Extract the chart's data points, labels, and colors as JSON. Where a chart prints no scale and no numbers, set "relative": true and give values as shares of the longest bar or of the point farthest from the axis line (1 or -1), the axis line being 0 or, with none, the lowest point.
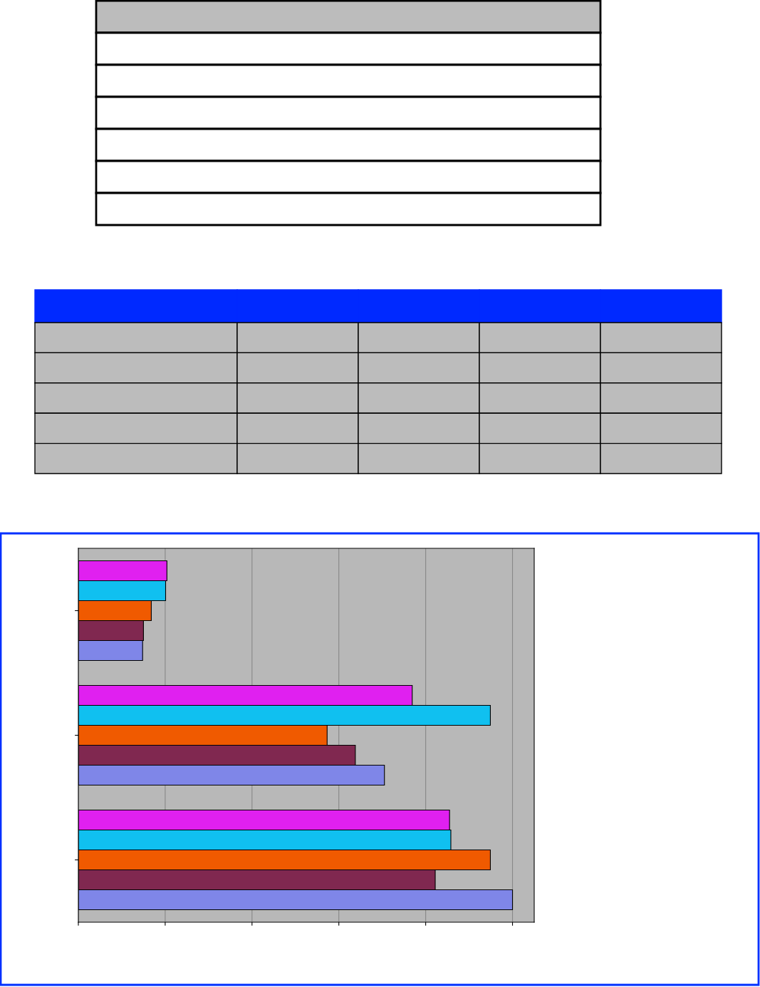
{
  "chart_data": {
    "type": "bar",
    "orientation": "horizontal",
    "relative": true,
    "grid": "x",
    "categories": [
      null,
      null,
      null
    ],
    "series": [
      {
        "color": "#e020f0",
        "values": [
          0.204,
          0.769,
          0.855
        ]
      },
      {
        "color": "#10c0f0",
        "values": [
          0.201,
          0.949,
          0.858
        ]
      },
      {
        "color": "#f05a00",
        "values": [
          0.168,
          0.573,
          0.949
        ]
      },
      {
        "color": "#802850",
        "values": [
          0.15,
          0.638,
          0.822
        ]
      },
      {
        "color": "#7f86e8",
        "values": [
          0.148,
          0.705,
          1.0
        ]
      }
    ]
  }
}
